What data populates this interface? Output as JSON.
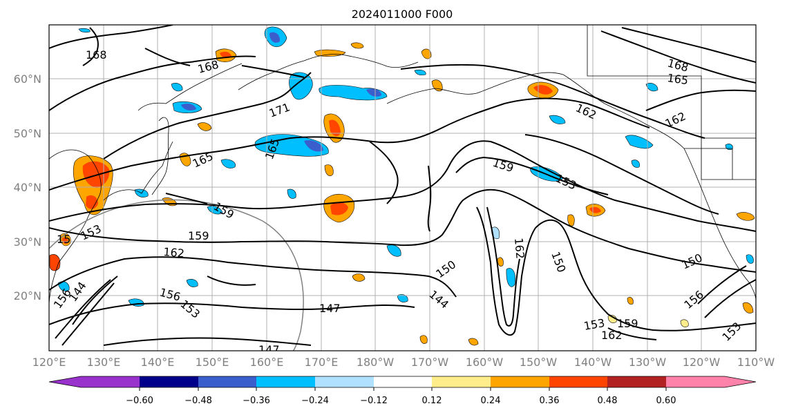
{
  "title": "2024011000 F000",
  "lat_labels": [
    "60°N",
    "50°N",
    "40°N",
    "30°N",
    "20°N"
  ],
  "lon_labels": [
    "120°E",
    "130°E",
    "140°E",
    "150°E",
    "160°E",
    "170°E",
    "180°W",
    "170°W",
    "160°W",
    "150°W",
    "140°W",
    "130°W",
    "120°W",
    "110°W"
  ],
  "contour_labels": [
    "168",
    "168",
    "171",
    "165",
    "165",
    "168",
    "165",
    "162",
    "162",
    "159",
    "153",
    "159",
    "159",
    "162",
    "150",
    "150",
    "150",
    "147",
    "147",
    "144",
    "153",
    "159",
    "162",
    "156",
    "153",
    "156",
    "153",
    "162",
    "15",
    "153",
    "156",
    "144"
  ],
  "colorbar": {
    "ticks": [
      "−0.60",
      "−0.48",
      "−0.36",
      "−0.24",
      "−0.12",
      "0.12",
      "0.24",
      "0.36",
      "0.48",
      "0.60"
    ],
    "colors": [
      "#9932CC",
      "#00008B",
      "#3A5FCD",
      "#00BFFF",
      "#B0E2FF",
      "#FFFFFF",
      "#FFEC8B",
      "#FFA500",
      "#FF4500",
      "#B22222",
      "#FF82AB"
    ]
  }
}
